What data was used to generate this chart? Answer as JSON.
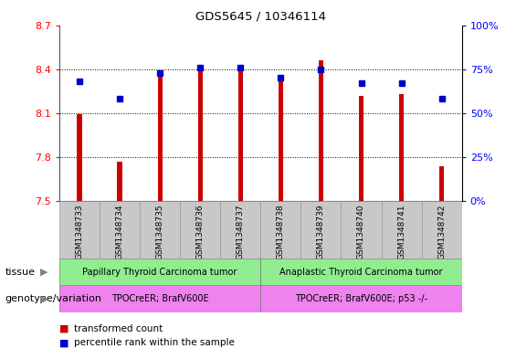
{
  "title": "GDS5645 / 10346114",
  "samples": [
    "GSM1348733",
    "GSM1348734",
    "GSM1348735",
    "GSM1348736",
    "GSM1348737",
    "GSM1348738",
    "GSM1348739",
    "GSM1348740",
    "GSM1348741",
    "GSM1348742"
  ],
  "transformed_count": [
    8.09,
    7.77,
    8.35,
    8.4,
    8.4,
    8.35,
    8.46,
    8.22,
    8.23,
    7.74
  ],
  "percentile_rank": [
    68,
    58,
    73,
    76,
    76,
    70,
    75,
    67,
    67,
    58
  ],
  "ylim": [
    7.5,
    8.7
  ],
  "yticks_left": [
    7.5,
    7.8,
    8.1,
    8.4,
    8.7
  ],
  "yticks_right": [
    0,
    25,
    50,
    75,
    100
  ],
  "bar_color": "#cc0000",
  "dot_color": "#0000cc",
  "tissue_group1": "Papillary Thyroid Carcinoma tumor",
  "tissue_group2": "Anaplastic Thyroid Carcinoma tumor",
  "genotype_group1": "TPOCreER; BrafV600E",
  "genotype_group2": "TPOCreER; BrafV600E; p53 -/-",
  "tissue_color": "#90ee90",
  "genotype_color": "#ee82ee",
  "col_bg": "#c8c8c8",
  "n_group1": 5,
  "n_group2": 5
}
